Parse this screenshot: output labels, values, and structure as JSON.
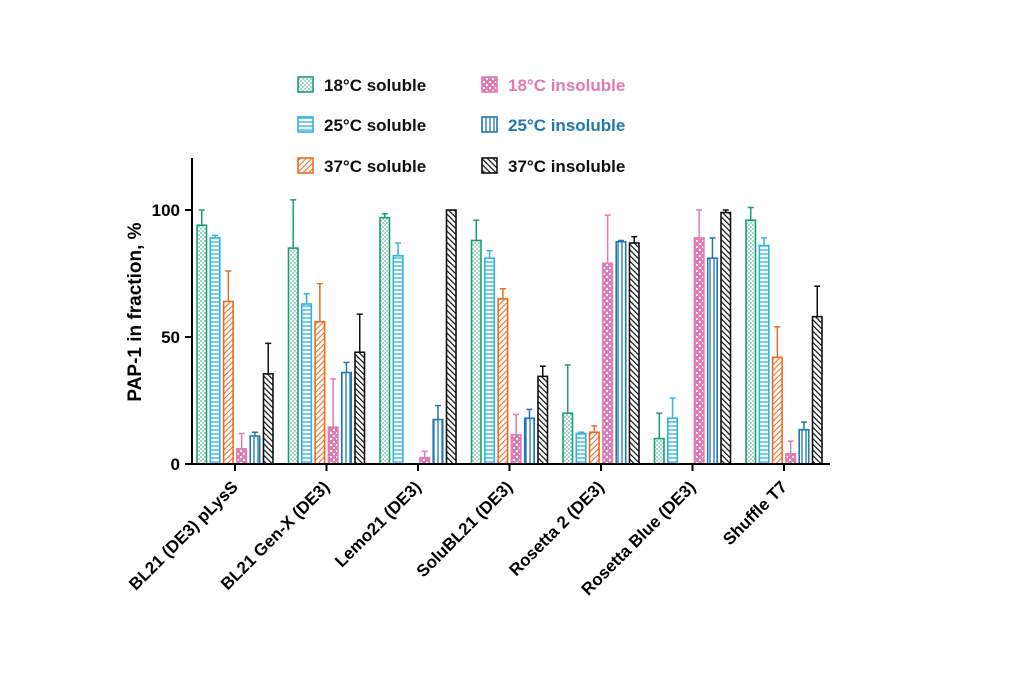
{
  "chart_data": {
    "type": "bar",
    "title": "",
    "xlabel": "",
    "ylabel": "PAP-1 in fraction, %",
    "ylim": [
      0,
      120
    ],
    "yticks": [
      0,
      50,
      100
    ],
    "grid": false,
    "legend_position": "top",
    "categories": [
      "BL21 (DE3) pLysS",
      "BL21 Gen-X (DE3)",
      "Lemo21 (DE3)",
      "SoluBL21 (DE3)",
      "Rosetta 2 (DE3)",
      "Rosetta Blue (DE3)",
      "Shuffle T7"
    ],
    "series": [
      {
        "name": "18°C soluble",
        "color": "#1a9e77",
        "pattern": "dots",
        "legend_text_color": "#111111",
        "values": [
          94,
          85,
          97,
          88,
          20,
          10,
          96
        ],
        "errors": [
          6,
          19,
          1.5,
          8,
          19,
          10,
          5
        ]
      },
      {
        "name": "25°C soluble",
        "color": "#2fb3e0",
        "pattern": "hlines",
        "legend_text_color": "#111111",
        "values": [
          89,
          63,
          82,
          81,
          12,
          18,
          86
        ],
        "errors": [
          1,
          4,
          5,
          3,
          0.5,
          8,
          3
        ]
      },
      {
        "name": "37°C soluble",
        "color": "#ee6a1f",
        "pattern": "diag-light",
        "legend_text_color": "#111111",
        "values": [
          64,
          56,
          0,
          65,
          12.5,
          0,
          42
        ],
        "errors": [
          12,
          15,
          0,
          4,
          2.5,
          0,
          12
        ]
      },
      {
        "name": "18°C insoluble",
        "color": "#e27ab4",
        "pattern": "checker",
        "legend_text_color": "#e27ab4",
        "values": [
          6,
          14.5,
          2.5,
          11.5,
          79,
          89,
          4
        ],
        "errors": [
          6,
          19,
          2.5,
          8,
          19,
          11,
          5
        ]
      },
      {
        "name": "25°C insoluble",
        "color": "#1f78b4",
        "pattern": "vlines",
        "legend_text_color": "#1f78b4",
        "values": [
          11,
          36,
          17.5,
          18,
          87.5,
          81,
          13.5
        ],
        "errors": [
          1.5,
          4,
          5.5,
          3.5,
          0.5,
          8,
          3
        ]
      },
      {
        "name": "37°C insoluble",
        "color": "#111111",
        "pattern": "diag-dark",
        "legend_text_color": "#111111",
        "values": [
          35.5,
          44,
          100,
          34.5,
          87,
          99,
          58
        ],
        "errors": [
          12,
          15,
          0,
          4,
          2.5,
          1,
          12
        ]
      }
    ]
  }
}
